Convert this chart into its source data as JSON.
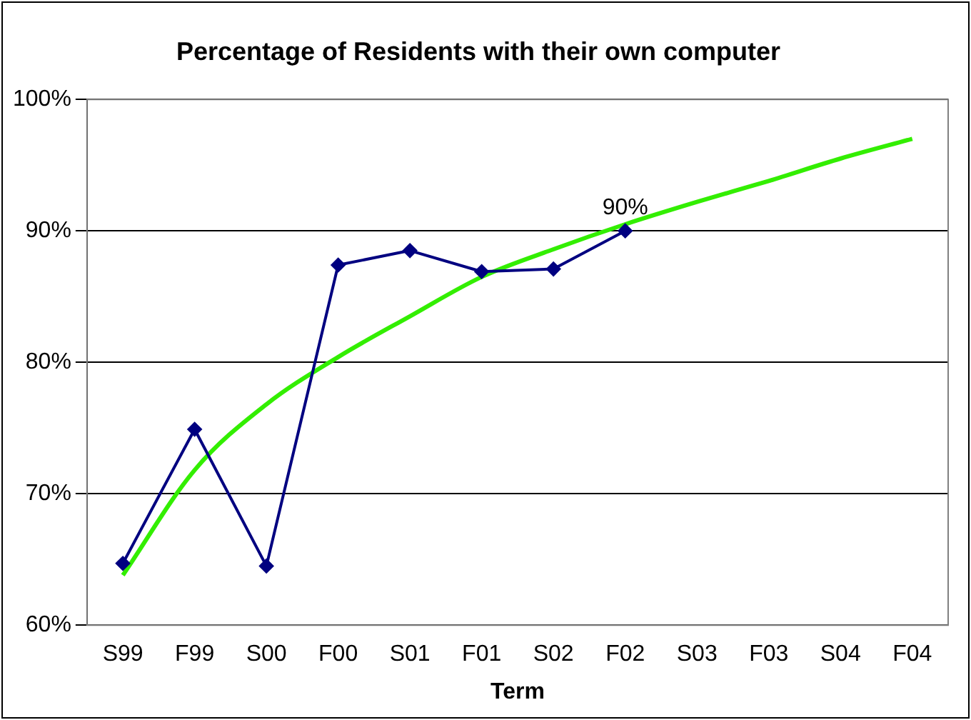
{
  "chart_data": {
    "type": "line",
    "title": "Percentage of Residents with their own computer",
    "xlabel": "Term",
    "categories": [
      "S99",
      "F99",
      "S00",
      "F00",
      "S01",
      "F01",
      "S02",
      "F02",
      "S03",
      "F03",
      "S04",
      "F04"
    ],
    "series": [
      {
        "color": "#000080",
        "marker": "diamond",
        "values": [
          64.7,
          74.9,
          64.5,
          87.4,
          88.5,
          86.9,
          87.1,
          90,
          null,
          null,
          null,
          null
        ],
        "value_labels": [
          null,
          null,
          null,
          null,
          null,
          null,
          null,
          "90%",
          null,
          null,
          null,
          null
        ]
      },
      {
        "color": "#33ee00",
        "marker": "none",
        "values": [
          63.8,
          71.8,
          76.8,
          80.4,
          83.5,
          86.5,
          88.6,
          90.5,
          92.2,
          93.8,
          95.5,
          97.0
        ]
      }
    ],
    "ylim": [
      60,
      100
    ],
    "yticks": [
      {
        "value": 60,
        "label": "60%"
      },
      {
        "value": 70,
        "label": "70%"
      },
      {
        "value": 80,
        "label": "80%"
      },
      {
        "value": 90,
        "label": "90%"
      },
      {
        "value": 100,
        "label": "100%"
      }
    ],
    "grid": "y",
    "legend": false
  }
}
